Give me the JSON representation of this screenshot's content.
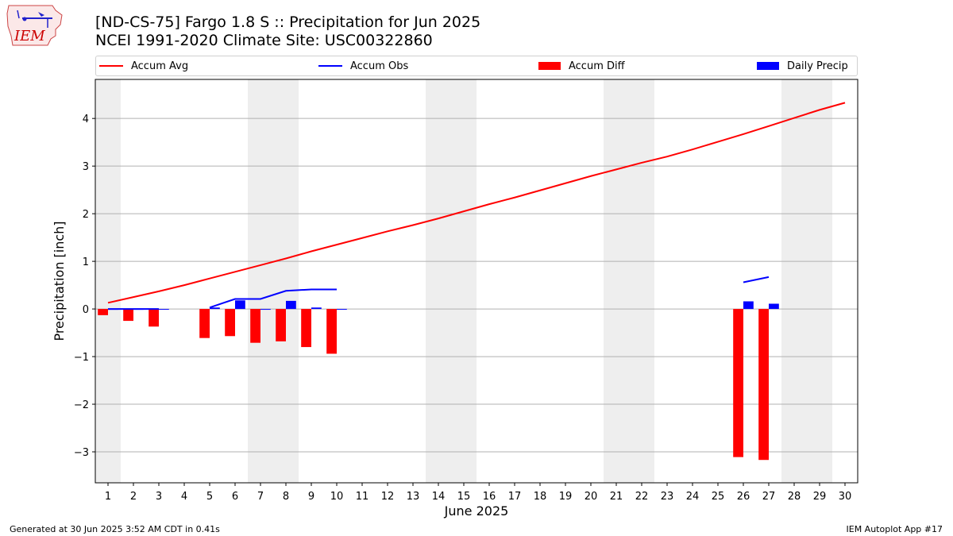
{
  "header": {
    "title_line1": "[ND-CS-75] Fargo 1.8 S :: Precipitation for Jun 2025",
    "title_line2": "NCEI 1991-2020 Climate Site: USC00322860"
  },
  "logo": {
    "text": "IEM",
    "icon": "iem-iowa-logo"
  },
  "legend": {
    "items": [
      {
        "label": "Accum Avg",
        "kind": "line",
        "color": "#ff0000"
      },
      {
        "label": "Accum Obs",
        "kind": "line",
        "color": "#0000ff"
      },
      {
        "label": "Accum Diff",
        "kind": "patch",
        "color": "#ff0000"
      },
      {
        "label": "Daily Precip",
        "kind": "patch",
        "color": "#0000ff"
      }
    ]
  },
  "footer": {
    "left": "Generated at 30 Jun 2025 3:52 AM CDT in 0.41s",
    "right": "IEM Autoplot App #17"
  },
  "chart_data": {
    "type": "bar",
    "title": "[ND-CS-75] Fargo 1.8 S :: Precipitation for Jun 2025",
    "xlabel": "June 2025",
    "ylabel": "Precipitation [inch]",
    "xlim": [
      0.5,
      30.5
    ],
    "ylim": [
      -3.65,
      4.82
    ],
    "x_ticks": [
      1,
      2,
      3,
      4,
      5,
      6,
      7,
      8,
      9,
      10,
      11,
      12,
      13,
      14,
      15,
      16,
      17,
      18,
      19,
      20,
      21,
      22,
      23,
      24,
      25,
      26,
      27,
      28,
      29,
      30
    ],
    "y_ticks": [
      -3,
      -2,
      -1,
      0,
      1,
      2,
      3,
      4
    ],
    "y_tick_labels": [
      "−3",
      "−2",
      "−1",
      "0",
      "1",
      "2",
      "3",
      "4"
    ],
    "grid": "horizontal",
    "legend_placement": "top",
    "weekend_shading": [
      [
        0.5,
        1.5
      ],
      [
        6.5,
        8.5
      ],
      [
        13.5,
        15.5
      ],
      [
        20.5,
        22.5
      ],
      [
        27.5,
        29.5
      ]
    ],
    "weekend_color": "#eeeeee",
    "series": [
      {
        "name": "Accum Avg",
        "kind": "line",
        "color": "#ff0000",
        "x": [
          1,
          2,
          3,
          4,
          5,
          6,
          7,
          8,
          9,
          10,
          11,
          12,
          13,
          14,
          15,
          16,
          17,
          18,
          19,
          20,
          21,
          22,
          23,
          24,
          25,
          26,
          27,
          28,
          29,
          30
        ],
        "values": [
          0.13,
          0.25,
          0.37,
          0.5,
          0.64,
          0.78,
          0.92,
          1.06,
          1.21,
          1.35,
          1.49,
          1.63,
          1.76,
          1.9,
          2.05,
          2.2,
          2.34,
          2.49,
          2.64,
          2.79,
          2.93,
          3.07,
          3.2,
          3.35,
          3.51,
          3.67,
          3.84,
          4.01,
          4.18,
          4.33
        ]
      },
      {
        "name": "Accum Obs",
        "kind": "line",
        "color": "#0000ff",
        "segments": [
          {
            "x": [
              1,
              2,
              3
            ],
            "values": [
              0.0,
              0.0,
              0.0
            ]
          },
          {
            "x": [
              5,
              6,
              7,
              8,
              9,
              10
            ],
            "values": [
              0.03,
              0.21,
              0.21,
              0.38,
              0.41,
              0.41
            ]
          },
          {
            "x": [
              26,
              27
            ],
            "values": [
              0.56,
              0.67
            ]
          }
        ]
      },
      {
        "name": "Accum Diff",
        "kind": "bar",
        "color": "#ff0000",
        "x": [
          1,
          2,
          3,
          5,
          6,
          7,
          8,
          9,
          10,
          26,
          27
        ],
        "values": [
          -0.13,
          -0.25,
          -0.37,
          -0.61,
          -0.57,
          -0.71,
          -0.68,
          -0.8,
          -0.94,
          -3.11,
          -3.17
        ]
      },
      {
        "name": "Daily Precip",
        "kind": "bar",
        "color": "#0000ff",
        "x": [
          1,
          2,
          3,
          5,
          6,
          7,
          8,
          9,
          10,
          26,
          27
        ],
        "values": [
          0.0,
          0.0,
          0.0,
          0.03,
          0.18,
          0.0,
          0.17,
          0.03,
          0.0,
          0.16,
          0.11
        ]
      }
    ]
  }
}
